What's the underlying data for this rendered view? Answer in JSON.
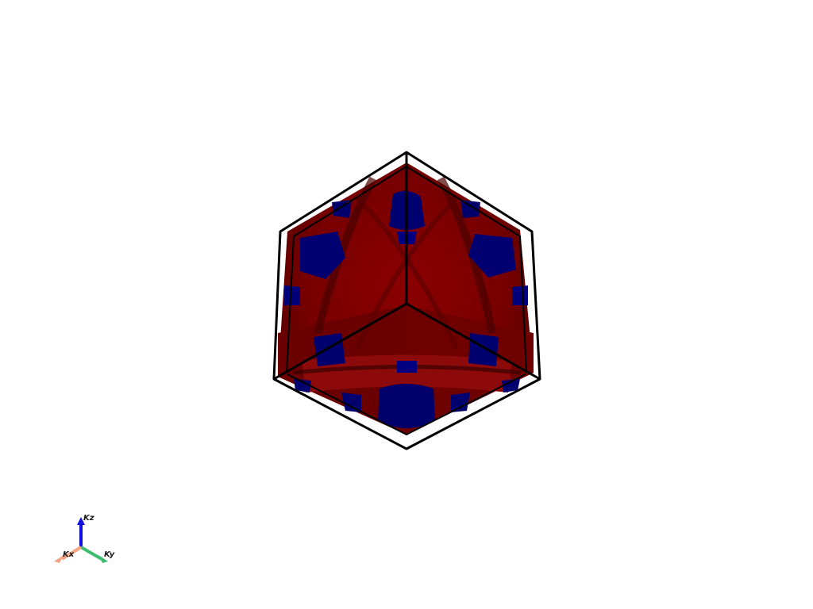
{
  "scene": {
    "background": "#ffffff",
    "surface_colors": {
      "primary": "#7a0000",
      "primary_dark": "#5a0000",
      "secondary": "#00007a",
      "secondary_dark": "#000055"
    },
    "box_color": "#000000"
  },
  "orientation_widget": {
    "x_axis": {
      "label": "Kx",
      "color": "#f4a582"
    },
    "y_axis": {
      "label": "Ky",
      "color": "#3cbc6e"
    },
    "z_axis": {
      "label": "Kz",
      "color": "#1010e0"
    }
  }
}
